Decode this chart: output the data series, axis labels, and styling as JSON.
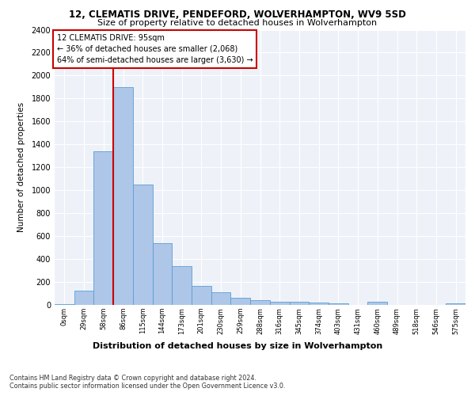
{
  "title1": "12, CLEMATIS DRIVE, PENDEFORD, WOLVERHAMPTON, WV9 5SD",
  "title2": "Size of property relative to detached houses in Wolverhampton",
  "xlabel": "Distribution of detached houses by size in Wolverhampton",
  "ylabel": "Number of detached properties",
  "footnote1": "Contains HM Land Registry data © Crown copyright and database right 2024.",
  "footnote2": "Contains public sector information licensed under the Open Government Licence v3.0.",
  "bin_labels": [
    "0sqm",
    "29sqm",
    "58sqm",
    "86sqm",
    "115sqm",
    "144sqm",
    "173sqm",
    "201sqm",
    "230sqm",
    "259sqm",
    "288sqm",
    "316sqm",
    "345sqm",
    "374sqm",
    "403sqm",
    "431sqm",
    "460sqm",
    "489sqm",
    "518sqm",
    "546sqm",
    "575sqm"
  ],
  "bar_heights": [
    10,
    125,
    1340,
    1900,
    1050,
    540,
    335,
    165,
    110,
    65,
    40,
    30,
    25,
    20,
    15,
    0,
    25,
    0,
    0,
    0,
    15
  ],
  "bar_color": "#aec6e8",
  "bar_edge_color": "#5a9fd4",
  "vline_color": "#cc0000",
  "annotation_title": "12 CLEMATIS DRIVE: 95sqm",
  "annotation_line1": "← 36% of detached houses are smaller (2,068)",
  "annotation_line2": "64% of semi-detached houses are larger (3,630) →",
  "annotation_box_color": "#cc0000",
  "ylim": [
    0,
    2400
  ],
  "yticks": [
    0,
    200,
    400,
    600,
    800,
    1000,
    1200,
    1400,
    1600,
    1800,
    2000,
    2200,
    2400
  ],
  "plot_bg_color": "#eef2f8"
}
